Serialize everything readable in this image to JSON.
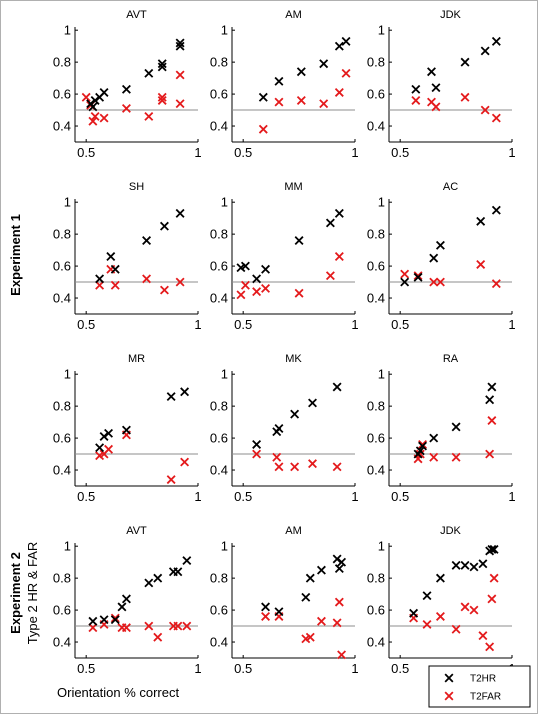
{
  "figure": {
    "experiment_labels": [
      "Experiment 1",
      "Experiment 2"
    ],
    "ylabel": "Type 2 HR & FAR",
    "xlabel": "Orientation % correct",
    "legend": [
      {
        "label": "T2HR",
        "color": "#000000"
      },
      {
        "label": "T2FAR",
        "color": "#e41a1c"
      }
    ],
    "marker": "x",
    "reference_line_y": 0.5,
    "xlim": [
      0.45,
      1.0
    ],
    "ylim": [
      0.3,
      1.02
    ],
    "xticks": [
      {
        "v": 0.5,
        "label": "0.5"
      },
      {
        "v": 1,
        "label": "1"
      }
    ],
    "yticks": [
      {
        "v": 0.4,
        "label": "0.4"
      },
      {
        "v": 0.6,
        "label": "0.6"
      },
      {
        "v": 0.8,
        "label": "0.8"
      },
      {
        "v": 1,
        "label": "1"
      }
    ]
  },
  "chart_data": [
    {
      "type": "scatter",
      "title": "AVT",
      "experiment": 1,
      "series": [
        {
          "name": "T2HR",
          "points": [
            [
              0.52,
              0.54
            ],
            [
              0.53,
              0.52
            ],
            [
              0.54,
              0.56
            ],
            [
              0.56,
              0.58
            ],
            [
              0.58,
              0.61
            ],
            [
              0.68,
              0.63
            ],
            [
              0.78,
              0.73
            ],
            [
              0.84,
              0.77
            ],
            [
              0.84,
              0.79
            ],
            [
              0.92,
              0.9
            ],
            [
              0.92,
              0.92
            ]
          ]
        },
        {
          "name": "T2FAR",
          "points": [
            [
              0.5,
              0.58
            ],
            [
              0.52,
              0.53
            ],
            [
              0.53,
              0.43
            ],
            [
              0.54,
              0.46
            ],
            [
              0.58,
              0.45
            ],
            [
              0.68,
              0.51
            ],
            [
              0.78,
              0.46
            ],
            [
              0.84,
              0.56
            ],
            [
              0.84,
              0.58
            ],
            [
              0.92,
              0.72
            ],
            [
              0.92,
              0.54
            ]
          ]
        }
      ]
    },
    {
      "type": "scatter",
      "title": "AM",
      "experiment": 1,
      "series": [
        {
          "name": "T2HR",
          "points": [
            [
              0.59,
              0.58
            ],
            [
              0.66,
              0.68
            ],
            [
              0.76,
              0.74
            ],
            [
              0.86,
              0.79
            ],
            [
              0.93,
              0.9
            ],
            [
              0.96,
              0.93
            ]
          ]
        },
        {
          "name": "T2FAR",
          "points": [
            [
              0.59,
              0.38
            ],
            [
              0.66,
              0.55
            ],
            [
              0.76,
              0.56
            ],
            [
              0.86,
              0.54
            ],
            [
              0.93,
              0.61
            ],
            [
              0.96,
              0.73
            ]
          ]
        }
      ]
    },
    {
      "type": "scatter",
      "title": "JDK",
      "experiment": 1,
      "series": [
        {
          "name": "T2HR",
          "points": [
            [
              0.57,
              0.63
            ],
            [
              0.64,
              0.74
            ],
            [
              0.66,
              0.64
            ],
            [
              0.79,
              0.8
            ],
            [
              0.88,
              0.87
            ],
            [
              0.93,
              0.93
            ]
          ]
        },
        {
          "name": "T2FAR",
          "points": [
            [
              0.57,
              0.56
            ],
            [
              0.64,
              0.55
            ],
            [
              0.66,
              0.52
            ],
            [
              0.79,
              0.58
            ],
            [
              0.88,
              0.5
            ],
            [
              0.93,
              0.45
            ]
          ]
        }
      ]
    },
    {
      "type": "scatter",
      "title": "SH",
      "experiment": 1,
      "series": [
        {
          "name": "T2HR",
          "points": [
            [
              0.56,
              0.52
            ],
            [
              0.61,
              0.66
            ],
            [
              0.63,
              0.58
            ],
            [
              0.77,
              0.76
            ],
            [
              0.85,
              0.85
            ],
            [
              0.92,
              0.93
            ]
          ]
        },
        {
          "name": "T2FAR",
          "points": [
            [
              0.56,
              0.48
            ],
            [
              0.61,
              0.58
            ],
            [
              0.63,
              0.48
            ],
            [
              0.77,
              0.52
            ],
            [
              0.85,
              0.45
            ],
            [
              0.92,
              0.5
            ]
          ]
        }
      ]
    },
    {
      "type": "scatter",
      "title": "MM",
      "experiment": 1,
      "series": [
        {
          "name": "T2HR",
          "points": [
            [
              0.49,
              0.59
            ],
            [
              0.51,
              0.6
            ],
            [
              0.56,
              0.52
            ],
            [
              0.6,
              0.58
            ],
            [
              0.75,
              0.76
            ],
            [
              0.89,
              0.87
            ],
            [
              0.93,
              0.93
            ]
          ]
        },
        {
          "name": "T2FAR",
          "points": [
            [
              0.49,
              0.42
            ],
            [
              0.51,
              0.48
            ],
            [
              0.56,
              0.44
            ],
            [
              0.6,
              0.46
            ],
            [
              0.75,
              0.43
            ],
            [
              0.89,
              0.54
            ],
            [
              0.93,
              0.66
            ]
          ]
        }
      ]
    },
    {
      "type": "scatter",
      "title": "AC",
      "experiment": 1,
      "series": [
        {
          "name": "T2HR",
          "points": [
            [
              0.52,
              0.5
            ],
            [
              0.58,
              0.53
            ],
            [
              0.65,
              0.65
            ],
            [
              0.68,
              0.73
            ],
            [
              0.86,
              0.88
            ],
            [
              0.93,
              0.95
            ]
          ]
        },
        {
          "name": "T2FAR",
          "points": [
            [
              0.52,
              0.55
            ],
            [
              0.58,
              0.54
            ],
            [
              0.65,
              0.5
            ],
            [
              0.68,
              0.5
            ],
            [
              0.86,
              0.61
            ],
            [
              0.93,
              0.49
            ]
          ]
        }
      ]
    },
    {
      "type": "scatter",
      "title": "MR",
      "experiment": 1,
      "series": [
        {
          "name": "T2HR",
          "points": [
            [
              0.56,
              0.54
            ],
            [
              0.58,
              0.61
            ],
            [
              0.6,
              0.63
            ],
            [
              0.68,
              0.65
            ],
            [
              0.88,
              0.86
            ],
            [
              0.94,
              0.89
            ]
          ]
        },
        {
          "name": "T2FAR",
          "points": [
            [
              0.56,
              0.49
            ],
            [
              0.58,
              0.5
            ],
            [
              0.6,
              0.53
            ],
            [
              0.68,
              0.62
            ],
            [
              0.88,
              0.34
            ],
            [
              0.94,
              0.45
            ]
          ]
        }
      ]
    },
    {
      "type": "scatter",
      "title": "MK",
      "experiment": 1,
      "series": [
        {
          "name": "T2HR",
          "points": [
            [
              0.56,
              0.56
            ],
            [
              0.65,
              0.64
            ],
            [
              0.66,
              0.66
            ],
            [
              0.73,
              0.75
            ],
            [
              0.81,
              0.82
            ],
            [
              0.92,
              0.92
            ]
          ]
        },
        {
          "name": "T2FAR",
          "points": [
            [
              0.56,
              0.5
            ],
            [
              0.65,
              0.48
            ],
            [
              0.66,
              0.42
            ],
            [
              0.73,
              0.42
            ],
            [
              0.81,
              0.44
            ],
            [
              0.92,
              0.42
            ]
          ]
        }
      ]
    },
    {
      "type": "scatter",
      "title": "RA",
      "experiment": 1,
      "series": [
        {
          "name": "T2HR",
          "points": [
            [
              0.58,
              0.5
            ],
            [
              0.59,
              0.52
            ],
            [
              0.6,
              0.55
            ],
            [
              0.65,
              0.6
            ],
            [
              0.75,
              0.67
            ],
            [
              0.9,
              0.84
            ],
            [
              0.91,
              0.92
            ]
          ]
        },
        {
          "name": "T2FAR",
          "points": [
            [
              0.58,
              0.47
            ],
            [
              0.59,
              0.5
            ],
            [
              0.6,
              0.56
            ],
            [
              0.65,
              0.48
            ],
            [
              0.75,
              0.48
            ],
            [
              0.9,
              0.5
            ],
            [
              0.91,
              0.71
            ]
          ]
        }
      ]
    },
    {
      "type": "scatter",
      "title": "AVT",
      "experiment": 2,
      "series": [
        {
          "name": "T2HR",
          "points": [
            [
              0.53,
              0.53
            ],
            [
              0.58,
              0.54
            ],
            [
              0.63,
              0.54
            ],
            [
              0.66,
              0.62
            ],
            [
              0.68,
              0.67
            ],
            [
              0.78,
              0.77
            ],
            [
              0.82,
              0.8
            ],
            [
              0.89,
              0.84
            ],
            [
              0.91,
              0.84
            ],
            [
              0.95,
              0.91
            ]
          ]
        },
        {
          "name": "T2FAR",
          "points": [
            [
              0.53,
              0.49
            ],
            [
              0.58,
              0.51
            ],
            [
              0.63,
              0.55
            ],
            [
              0.66,
              0.49
            ],
            [
              0.68,
              0.49
            ],
            [
              0.78,
              0.5
            ],
            [
              0.82,
              0.43
            ],
            [
              0.89,
              0.5
            ],
            [
              0.91,
              0.5
            ],
            [
              0.95,
              0.5
            ]
          ]
        }
      ]
    },
    {
      "type": "scatter",
      "title": "AM",
      "experiment": 2,
      "series": [
        {
          "name": "T2HR",
          "points": [
            [
              0.6,
              0.62
            ],
            [
              0.66,
              0.59
            ],
            [
              0.78,
              0.68
            ],
            [
              0.8,
              0.8
            ],
            [
              0.85,
              0.85
            ],
            [
              0.92,
              0.92
            ],
            [
              0.93,
              0.86
            ],
            [
              0.94,
              0.9
            ]
          ]
        },
        {
          "name": "T2FAR",
          "points": [
            [
              0.6,
              0.56
            ],
            [
              0.66,
              0.56
            ],
            [
              0.78,
              0.42
            ],
            [
              0.8,
              0.43
            ],
            [
              0.85,
              0.53
            ],
            [
              0.92,
              0.52
            ],
            [
              0.93,
              0.65
            ],
            [
              0.94,
              0.32
            ]
          ]
        }
      ]
    },
    {
      "type": "scatter",
      "title": "JDK",
      "experiment": 2,
      "series": [
        {
          "name": "T2HR",
          "points": [
            [
              0.56,
              0.58
            ],
            [
              0.62,
              0.69
            ],
            [
              0.68,
              0.8
            ],
            [
              0.75,
              0.88
            ],
            [
              0.79,
              0.88
            ],
            [
              0.83,
              0.87
            ],
            [
              0.87,
              0.89
            ],
            [
              0.9,
              0.97
            ],
            [
              0.91,
              0.98
            ],
            [
              0.92,
              0.98
            ]
          ]
        },
        {
          "name": "T2FAR",
          "points": [
            [
              0.56,
              0.55
            ],
            [
              0.62,
              0.51
            ],
            [
              0.68,
              0.56
            ],
            [
              0.75,
              0.48
            ],
            [
              0.79,
              0.62
            ],
            [
              0.83,
              0.6
            ],
            [
              0.87,
              0.44
            ],
            [
              0.9,
              0.37
            ],
            [
              0.91,
              0.67
            ],
            [
              0.92,
              0.8
            ]
          ]
        }
      ]
    }
  ]
}
